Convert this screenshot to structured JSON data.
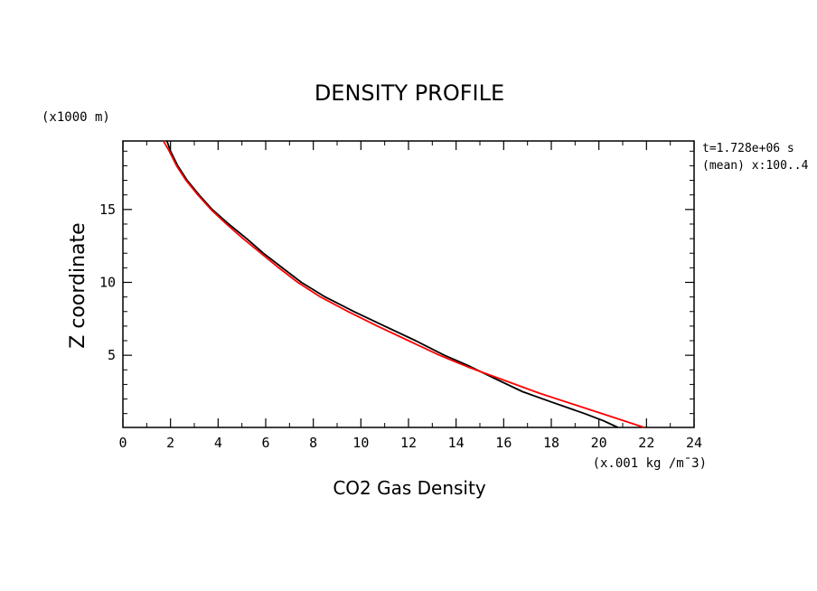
{
  "chart_data": {
    "type": "line",
    "title": "DENSITY PROFILE",
    "xlabel": "CO2 Gas Density",
    "xunits": "(x.001 kg /m¯3)",
    "ylabel": "Z coordinate",
    "yunits": "(x1000 m)",
    "annotations": [
      "t=1.728e+06 s",
      "(mean) x:100..4"
    ],
    "xlim": [
      0,
      24
    ],
    "ylim": [
      0.05,
      19.7
    ],
    "xticks": [
      0,
      2,
      4,
      6,
      8,
      10,
      12,
      14,
      16,
      18,
      20,
      22,
      24
    ],
    "yticks": [
      5,
      10,
      15
    ],
    "grid": false,
    "series": [
      {
        "color": "#000000",
        "points": [
          [
            1.85,
            19.7
          ],
          [
            2.0,
            19.0
          ],
          [
            2.3,
            18.0
          ],
          [
            2.7,
            17.0
          ],
          [
            3.2,
            16.0
          ],
          [
            3.75,
            15.0
          ],
          [
            4.45,
            14.0
          ],
          [
            5.2,
            13.0
          ],
          [
            5.9,
            12.0
          ],
          [
            6.7,
            11.0
          ],
          [
            7.5,
            10.0
          ],
          [
            8.5,
            9.0
          ],
          [
            9.7,
            8.0
          ],
          [
            11.0,
            7.0
          ],
          [
            12.3,
            6.0
          ],
          [
            13.5,
            5.0
          ],
          [
            14.5,
            4.3
          ],
          [
            15.5,
            3.5
          ],
          [
            16.8,
            2.5
          ],
          [
            18.0,
            1.8
          ],
          [
            19.4,
            1.0
          ],
          [
            20.2,
            0.5
          ],
          [
            20.8,
            0.05
          ]
        ]
      },
      {
        "color": "#ff0000",
        "points": [
          [
            1.7,
            19.7
          ],
          [
            1.95,
            19.0
          ],
          [
            2.25,
            18.0
          ],
          [
            2.65,
            17.0
          ],
          [
            3.15,
            16.0
          ],
          [
            3.7,
            15.0
          ],
          [
            4.35,
            14.0
          ],
          [
            5.05,
            13.0
          ],
          [
            5.8,
            12.0
          ],
          [
            6.55,
            11.0
          ],
          [
            7.35,
            10.0
          ],
          [
            8.3,
            9.0
          ],
          [
            9.45,
            8.0
          ],
          [
            10.7,
            7.0
          ],
          [
            12.0,
            6.0
          ],
          [
            13.3,
            5.0
          ],
          [
            14.5,
            4.2
          ],
          [
            16.0,
            3.3
          ],
          [
            17.5,
            2.4
          ],
          [
            19.0,
            1.6
          ],
          [
            20.5,
            0.8
          ],
          [
            21.9,
            0.05
          ]
        ]
      }
    ]
  }
}
